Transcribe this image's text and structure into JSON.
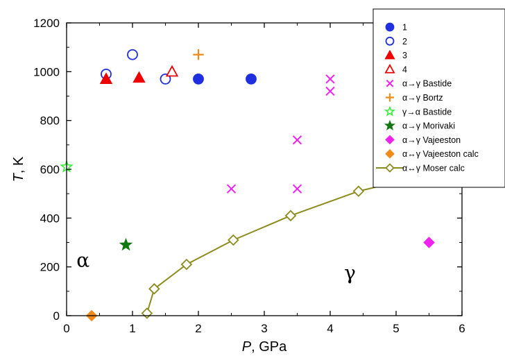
{
  "chart_data": {
    "type": "scatter",
    "xlabel": {
      "var": "P",
      "unit": ", GPa"
    },
    "ylabel": {
      "var": "T",
      "unit": ", K"
    },
    "xlim": [
      0,
      6
    ],
    "ylim": [
      0,
      1200
    ],
    "xticks": [
      "0",
      "1",
      "2",
      "3",
      "4",
      "5",
      "6"
    ],
    "yticks": [
      "0",
      "200",
      "400",
      "600",
      "800",
      "1000",
      "1200"
    ],
    "grid": false,
    "legend_position": "top-right",
    "phase_labels": [
      {
        "text": "α",
        "x": 0.25,
        "y": 200
      },
      {
        "text": "γ",
        "x": 4.3,
        "y": 150
      }
    ],
    "series": [
      {
        "name": "1",
        "marker": "circle",
        "filled": true,
        "color": "#1f2fe0",
        "points": [
          [
            2.0,
            970
          ],
          [
            2.8,
            970
          ]
        ]
      },
      {
        "name": "2",
        "marker": "circle",
        "filled": false,
        "color": "#1f2fe0",
        "points": [
          [
            0.6,
            990
          ],
          [
            1.0,
            1070
          ],
          [
            1.5,
            970
          ]
        ]
      },
      {
        "name": "3",
        "marker": "triangle",
        "filled": true,
        "color": "#ee0000",
        "points": [
          [
            0.6,
            970
          ],
          [
            1.1,
            975
          ]
        ]
      },
      {
        "name": "4",
        "marker": "triangle",
        "filled": false,
        "color": "#ee0000",
        "points": [
          [
            1.6,
            1000
          ]
        ]
      },
      {
        "name": "α→γ Bastide",
        "marker": "x",
        "filled": false,
        "color": "#ee22ee",
        "points": [
          [
            2.5,
            520
          ],
          [
            3.5,
            520
          ],
          [
            3.5,
            720
          ],
          [
            4.0,
            920
          ],
          [
            4.0,
            970
          ]
        ]
      },
      {
        "name": "α→γ Bortz",
        "marker": "plus",
        "filled": false,
        "color": "#f28a18",
        "points": [
          [
            2.0,
            1070
          ]
        ]
      },
      {
        "name": "γ→α Bastide",
        "marker": "star",
        "filled": false,
        "color": "#33ee33",
        "points": [
          [
            0.0,
            610
          ]
        ]
      },
      {
        "name": "α→γ Morivaki",
        "marker": "star",
        "filled": true,
        "color": "#117711",
        "points": [
          [
            0.9,
            290
          ]
        ]
      },
      {
        "name": "α→γ Vajeeston",
        "marker": "diamond",
        "filled": true,
        "color": "#ee22ee",
        "points": [
          [
            5.5,
            300
          ]
        ]
      },
      {
        "name": "α↔γ Vajeeston calc",
        "marker": "diamond",
        "filled": true,
        "color": "#f28a18",
        "points": [
          [
            0.38,
            0
          ]
        ]
      },
      {
        "name": "α↔γ Moser calc",
        "marker": "diamond",
        "filled": false,
        "color": "#8b8b1e",
        "line": true,
        "points": [
          [
            1.22,
            10
          ],
          [
            1.33,
            110
          ],
          [
            1.82,
            210
          ],
          [
            2.53,
            310
          ],
          [
            3.4,
            410
          ],
          [
            4.43,
            510
          ],
          [
            5.2,
            560
          ]
        ]
      }
    ]
  }
}
